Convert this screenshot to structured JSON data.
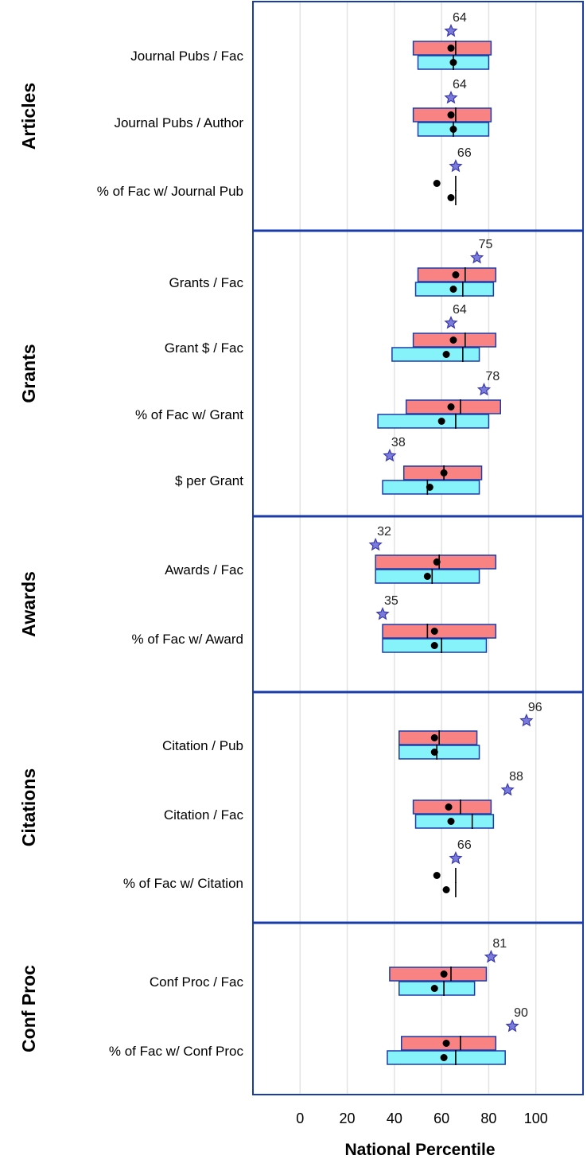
{
  "chart_data": {
    "type": "box",
    "xlabel": "National Percentile",
    "xticks": [
      0,
      20,
      40,
      60,
      80,
      100
    ],
    "xlim": [
      -20,
      120
    ],
    "grid": true,
    "colors": {
      "box_top": "#f98383",
      "box_bottom": "#86f3fa",
      "box_stroke": "#1a3caa",
      "star": "#7b7bdc",
      "star_stroke": "#3a3aaa",
      "frame": "#1a3caa",
      "grid": "#e3e3e3"
    },
    "panels": [
      {
        "label": "Articles",
        "rows": [
          {
            "label": "Journal Pubs / Fac",
            "value": 64,
            "top": {
              "q1": 48,
              "median": 66,
              "q3": 81,
              "mean": 64
            },
            "bottom": {
              "q1": 50,
              "median": 65,
              "q3": 80,
              "mean": 65
            }
          },
          {
            "label": "Journal Pubs / Author",
            "value": 64,
            "top": {
              "q1": 48,
              "median": 66,
              "q3": 81,
              "mean": 64
            },
            "bottom": {
              "q1": 50,
              "median": 65,
              "q3": 80,
              "mean": 65
            }
          },
          {
            "label": "% of Fac w/ Journal Pub",
            "value": 66,
            "top": {
              "q1": 66,
              "median": 66,
              "q3": 66,
              "mean": 58
            },
            "bottom": {
              "q1": 66,
              "median": 66,
              "q3": 66,
              "mean": 64
            }
          }
        ]
      },
      {
        "label": "Grants",
        "rows": [
          {
            "label": "Grants / Fac",
            "value": 75,
            "top": {
              "q1": 50,
              "median": 70,
              "q3": 83,
              "mean": 66
            },
            "bottom": {
              "q1": 49,
              "median": 69,
              "q3": 82,
              "mean": 65
            }
          },
          {
            "label": "Grant $ / Fac",
            "value": 64,
            "top": {
              "q1": 48,
              "median": 70,
              "q3": 83,
              "mean": 65
            },
            "bottom": {
              "q1": 39,
              "median": 69,
              "q3": 76,
              "mean": 62
            }
          },
          {
            "label": "% of Fac w/ Grant",
            "value": 78,
            "top": {
              "q1": 45,
              "median": 68,
              "q3": 85,
              "mean": 64
            },
            "bottom": {
              "q1": 33,
              "median": 66,
              "q3": 80,
              "mean": 60
            }
          },
          {
            "label": "$ per Grant",
            "value": 38,
            "top": {
              "q1": 44,
              "median": 61,
              "q3": 77,
              "mean": 61
            },
            "bottom": {
              "q1": 35,
              "median": 54,
              "q3": 76,
              "mean": 55
            }
          }
        ]
      },
      {
        "label": "Awards",
        "rows": [
          {
            "label": "Awards / Fac",
            "value": 32,
            "top": {
              "q1": 32,
              "median": 59,
              "q3": 83,
              "mean": 58
            },
            "bottom": {
              "q1": 32,
              "median": 56,
              "q3": 76,
              "mean": 54
            }
          },
          {
            "label": "% of Fac w/ Award",
            "value": 35,
            "top": {
              "q1": 35,
              "median": 54,
              "q3": 83,
              "mean": 57
            },
            "bottom": {
              "q1": 35,
              "median": 60,
              "q3": 79,
              "mean": 57
            }
          }
        ]
      },
      {
        "label": "Citations",
        "rows": [
          {
            "label": "Citation / Pub",
            "value": 96,
            "top": {
              "q1": 42,
              "median": 59,
              "q3": 75,
              "mean": 57
            },
            "bottom": {
              "q1": 42,
              "median": 58,
              "q3": 76,
              "mean": 57
            }
          },
          {
            "label": "Citation / Fac",
            "value": 88,
            "top": {
              "q1": 48,
              "median": 68,
              "q3": 81,
              "mean": 63
            },
            "bottom": {
              "q1": 49,
              "median": 73,
              "q3": 82,
              "mean": 64
            }
          },
          {
            "label": "% of Fac w/ Citation",
            "value": 66,
            "top": {
              "q1": 66,
              "median": 66,
              "q3": 66,
              "mean": 58
            },
            "bottom": {
              "q1": 66,
              "median": 66,
              "q3": 66,
              "mean": 62
            }
          }
        ]
      },
      {
        "label": "Conf Proc",
        "rows": [
          {
            "label": "Conf Proc / Fac",
            "value": 81,
            "top": {
              "q1": 38,
              "median": 64,
              "q3": 79,
              "mean": 61
            },
            "bottom": {
              "q1": 42,
              "median": 61,
              "q3": 74,
              "mean": 57
            }
          },
          {
            "label": "% of Fac w/ Conf Proc",
            "value": 90,
            "top": {
              "q1": 43,
              "median": 68,
              "q3": 83,
              "mean": 62
            },
            "bottom": {
              "q1": 37,
              "median": 66,
              "q3": 87,
              "mean": 61
            }
          }
        ]
      }
    ]
  }
}
